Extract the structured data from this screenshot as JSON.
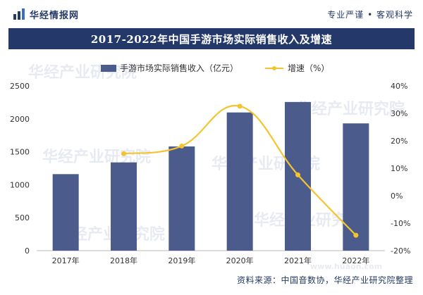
{
  "header": {
    "brand_name": "华经情报网",
    "slogan": "专业严谨 • 客观科学",
    "logo_icon": "bar-chart-logo-icon"
  },
  "watermark": "华经产业研究院",
  "watermark_url": "www.huaon.com",
  "source_text": "资料来源：中国音数协，华经产业研究院整理",
  "colors": {
    "bar": "#4a5b8c",
    "line": "#f4c430",
    "title_bg": "#24396a"
  },
  "chart_data": {
    "type": "bar",
    "title": "2017-2022年中国手游市场实际销售收入及增速",
    "categories": [
      "2017年",
      "2018年",
      "2019年",
      "2020年",
      "2021年",
      "2022年"
    ],
    "series": [
      {
        "name": "手游市场实际销售收入（亿元）",
        "type": "bar",
        "axis": "left",
        "values": [
          1161,
          1339,
          1581,
          2097,
          2256,
          1931
        ]
      },
      {
        "name": "增速（%）",
        "type": "line",
        "axis": "right",
        "values": [
          null,
          15.3,
          18.1,
          32.6,
          7.6,
          -14.4
        ]
      }
    ],
    "y_left": {
      "range": [
        0,
        2500
      ],
      "ticks": [
        0,
        500,
        1000,
        1500,
        2000,
        2500
      ]
    },
    "y_right": {
      "range": [
        -20,
        40
      ],
      "ticks": [
        -20,
        -10,
        0,
        10,
        20,
        30,
        40
      ],
      "unit": "%"
    },
    "legend": "top",
    "grid": false
  }
}
